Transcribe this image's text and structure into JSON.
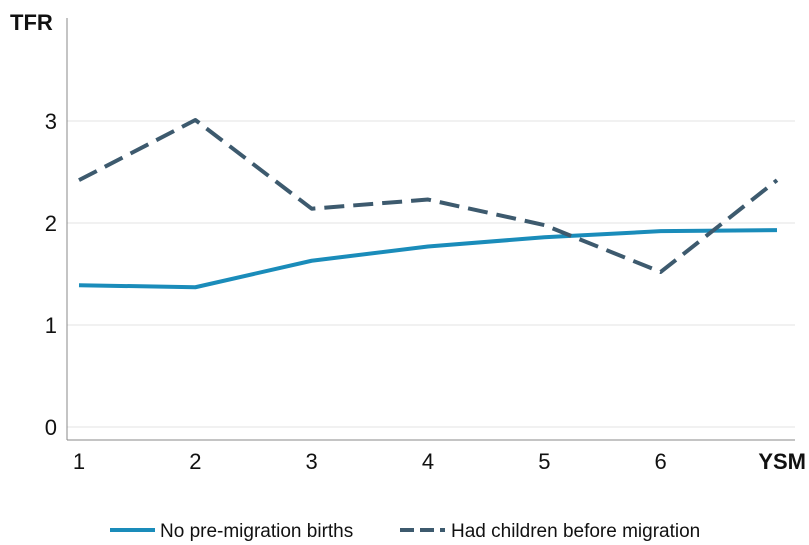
{
  "chart_data": {
    "type": "line",
    "title": "",
    "ylabel": "TFR",
    "xlabel": "YSM",
    "x": [
      1,
      2,
      3,
      4,
      5,
      6,
      7
    ],
    "x_tick_labels": [
      "1",
      "2",
      "3",
      "4",
      "5",
      "6"
    ],
    "y_tick_labels": [
      "0",
      "1",
      "2",
      "3"
    ],
    "xlim": [
      1,
      7
    ],
    "ylim": [
      0,
      4
    ],
    "grid": "horizontal",
    "legend_position": "bottom",
    "series": [
      {
        "name": "No pre-migration births",
        "values": [
          1.39,
          1.37,
          1.63,
          1.77,
          1.86,
          1.92,
          1.93
        ],
        "color": "#1a8cba",
        "style": "solid"
      },
      {
        "name": "Had children before migration",
        "values": [
          2.42,
          3.01,
          2.14,
          2.23,
          1.98,
          1.52,
          2.42
        ],
        "color": "#3d5a6e",
        "style": "dashed"
      }
    ]
  }
}
